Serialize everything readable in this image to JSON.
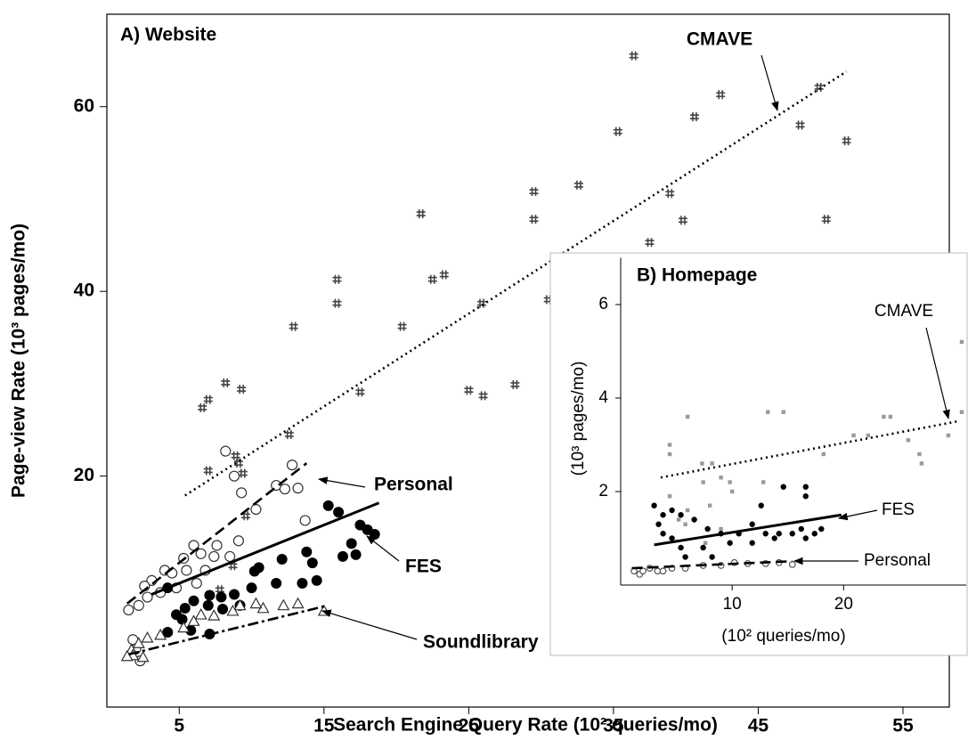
{
  "chart_data": [
    {
      "type": "scatter",
      "title": "A) Website",
      "xlabel": "Search Engine Query Rate (10² queries/mo)",
      "ylabel": "Page-view Rate (10³ pages/mo)",
      "xlim": [
        0,
        58.2
      ],
      "ylim": [
        -5,
        70
      ],
      "xticks": [
        5,
        15,
        25,
        35,
        45,
        55
      ],
      "yticks": [
        20,
        40,
        60
      ],
      "series": [
        {
          "name": "CMAVE",
          "marker": "hash",
          "color": "#444444",
          "line_style": "dotted",
          "x": [
            36.4,
            49.2,
            42.4,
            40.6,
            47.9,
            51.1,
            35.3,
            29.5,
            29.5,
            32.6,
            38.9,
            39.8,
            49.7,
            21.7,
            37.5,
            15.9,
            15.9,
            22.5,
            23.3,
            30.5,
            25.9,
            20.4,
            12.9,
            8.2,
            9.3,
            7.0,
            6.6,
            25.0,
            26.0,
            28.2,
            17.5,
            12.6,
            7.0,
            8.9,
            9.1,
            9.4,
            9.6,
            8.7,
            7.8
          ],
          "values": [
            65.5,
            62.1,
            61.3,
            58.9,
            58.0,
            56.3,
            57.3,
            50.8,
            47.8,
            51.5,
            50.6,
            47.7,
            47.8,
            48.4,
            45.3,
            41.3,
            38.7,
            41.3,
            41.8,
            39.1,
            38.7,
            36.2,
            36.2,
            30.1,
            29.4,
            28.3,
            27.4,
            29.3,
            28.7,
            29.9,
            29.1,
            24.5,
            20.6,
            22.2,
            21.4,
            20.3,
            15.7,
            10.3,
            7.7
          ],
          "fit": {
            "x": [
              5.4,
              51.1
            ],
            "values": [
              17.9,
              63.8
            ]
          }
        },
        {
          "name": "Personal",
          "marker": "open-circle",
          "color": "#333333",
          "line_style": "dashed",
          "x": [
            8.2,
            12.8,
            11.7,
            12.3,
            13.2,
            13.7,
            10.3,
            9.3,
            8.8,
            9.1,
            6.0,
            6.5,
            7.6,
            5.3,
            4.0,
            4.5,
            3.1,
            2.6,
            1.5,
            2.2,
            2.8,
            3.7,
            4.8,
            5.5,
            7.4,
            6.8,
            6.2,
            8.5,
            1.8,
            2.0,
            2.3
          ],
          "values": [
            22.7,
            21.2,
            19.0,
            18.6,
            18.7,
            15.2,
            16.4,
            18.2,
            20.0,
            13.0,
            12.5,
            11.6,
            12.5,
            11.1,
            9.8,
            9.5,
            8.7,
            8.1,
            5.5,
            6.0,
            6.9,
            7.4,
            7.9,
            9.8,
            11.3,
            9.8,
            8.4,
            11.3,
            2.3,
            1.3,
            0
          ],
          "fit": {
            "x": [
              1.4,
              13.8
            ],
            "values": [
              6.2,
              21.4
            ]
          }
        },
        {
          "name": "FES",
          "marker": "filled-circle",
          "color": "#000000",
          "line_style": "solid",
          "x": [
            15.3,
            16.0,
            17.5,
            18.0,
            18.5,
            16.9,
            17.2,
            16.3,
            13.8,
            14.2,
            12.1,
            10.5,
            10.2,
            14.5,
            13.5,
            11.7,
            10.0,
            8.8,
            7.9,
            7.1,
            7.0,
            6.0,
            5.4,
            4.8,
            4.2,
            5.2,
            8.0,
            9.2,
            5.8,
            4.2,
            7.1
          ],
          "values": [
            16.8,
            16.1,
            14.7,
            14.2,
            13.7,
            12.7,
            11.5,
            11.3,
            11.8,
            10.6,
            11.0,
            10.1,
            9.7,
            8.7,
            8.4,
            8.4,
            7.9,
            7.2,
            6.9,
            7.1,
            6.0,
            6.5,
            5.7,
            5.0,
            7.9,
            4.5,
            5.6,
            6.0,
            3.3,
            3.1,
            2.9
          ],
          "fit": {
            "x": [
              3.1,
              18.8
            ],
            "values": [
              7.2,
              17.1
            ]
          }
        },
        {
          "name": "Soundlibrary",
          "marker": "open-triangle",
          "color": "#333333",
          "line_style": "dashdot",
          "x": [
            15.0,
            13.2,
            12.2,
            10.8,
            10.3,
            9.2,
            8.7,
            7.4,
            6.5,
            6.0,
            5.3,
            3.7,
            2.8,
            2.2,
            1.7,
            1.8,
            2.5,
            1.4
          ],
          "values": [
            5.4,
            6.2,
            6.0,
            5.7,
            6.2,
            6.0,
            5.4,
            4.9,
            5.0,
            4.3,
            3.6,
            2.8,
            2.5,
            1.9,
            1.2,
            0.6,
            0.4,
            0.5
          ],
          "fit": {
            "x": [
              1.5,
              15.0
            ],
            "values": [
              0.7,
              5.9
            ]
          }
        }
      ]
    },
    {
      "type": "scatter",
      "title": "B) Homepage",
      "xlabel": "(10² queries/mo)",
      "ylabel": "(10³ pages/mo)",
      "xlim": [
        0,
        31
      ],
      "ylim": [
        0,
        7
      ],
      "xticks": [
        10,
        20
      ],
      "yticks": [
        2,
        4,
        6
      ],
      "series": [
        {
          "name": "CMAVE",
          "marker": "square",
          "color": "#999999",
          "line_style": "dotted",
          "x": [
            30.6,
            30.6,
            29.4,
            23.6,
            24.2,
            22.2,
            20.9,
            25.8,
            26.8,
            27.0,
            13.2,
            14.6,
            6.0,
            4.4,
            4.4,
            7.3,
            8.2,
            7.4,
            9.0,
            9.8,
            10.0,
            12.8,
            4.4,
            6.0,
            5.2,
            5.8,
            8.0,
            9.0,
            7.6,
            18.2
          ],
          "values": [
            5.2,
            3.7,
            3.2,
            3.6,
            3.6,
            3.2,
            3.2,
            3.1,
            2.8,
            2.6,
            3.7,
            3.7,
            3.6,
            3.0,
            2.8,
            2.6,
            2.6,
            2.2,
            2.3,
            2.2,
            2.0,
            2.2,
            1.9,
            1.6,
            1.4,
            1.3,
            1.7,
            1.2,
            0.9,
            2.8
          ],
          "fit": {
            "x": [
              3.6,
              30.2
            ],
            "values": [
              2.3,
              3.5
            ]
          }
        },
        {
          "name": "FES",
          "marker": "filled-circle",
          "color": "#000000",
          "line_style": "solid",
          "x": [
            16.6,
            16.6,
            14.6,
            12.6,
            3.0,
            3.8,
            3.4,
            4.6,
            5.4,
            6.6,
            7.8,
            9.0,
            10.6,
            11.8,
            13.0,
            14.2,
            15.4,
            16.2,
            17.4,
            18.0,
            16.6,
            13.8,
            11.8,
            9.8,
            7.4,
            5.4,
            4.6,
            8.2,
            5.8,
            3.8
          ],
          "values": [
            2.1,
            1.9,
            2.1,
            1.7,
            1.7,
            1.5,
            1.3,
            1.6,
            1.5,
            1.4,
            1.2,
            1.1,
            1.1,
            1.3,
            1.1,
            1.1,
            1.1,
            1.2,
            1.1,
            1.2,
            1.0,
            1.0,
            0.9,
            0.9,
            0.8,
            0.8,
            1.0,
            0.6,
            0.6,
            1.1
          ],
          "fit": {
            "x": [
              3.0,
              19.8
            ],
            "values": [
              0.86,
              1.5
            ]
          }
        },
        {
          "name": "Personal",
          "marker": "open-circle",
          "color": "#555555",
          "line_style": "dashed",
          "x": [
            1.2,
            1.7,
            2.0,
            2.6,
            3.3,
            3.8,
            4.6,
            5.8,
            7.4,
            9.0,
            10.2,
            11.4,
            13.0,
            14.2,
            15.4
          ],
          "values": [
            0.3,
            0.23,
            0.3,
            0.36,
            0.3,
            0.3,
            0.36,
            0.36,
            0.42,
            0.42,
            0.48,
            0.46,
            0.46,
            0.48,
            0.44
          ],
          "fit": {
            "x": [
              1.0,
              15.4
            ],
            "values": [
              0.36,
              0.51
            ]
          }
        }
      ]
    }
  ]
}
